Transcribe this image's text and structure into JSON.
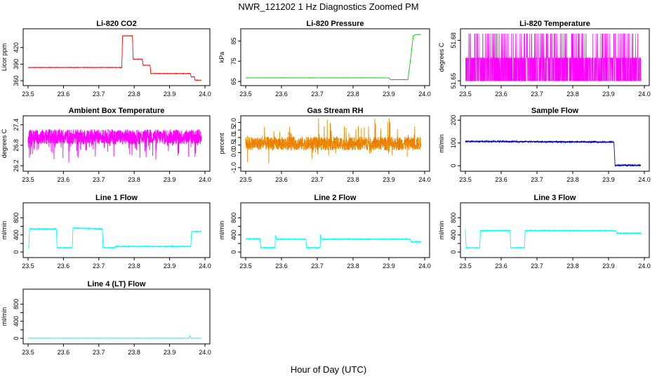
{
  "title": "NWR_121202  1 Hz Diagnostics Zoomed PM",
  "xlabel": "Hour of Day (UTC)",
  "chart_data": [
    {
      "id": "co2",
      "type": "line",
      "title": "Li-820 CO2",
      "ylabel": "Licor ppm",
      "color": "#ff0000",
      "noise": 0.25,
      "xlim": [
        23.5,
        24.0
      ],
      "ylim": [
        355,
        450
      ],
      "xticks": [
        23.5,
        23.6,
        23.7,
        23.8,
        23.9,
        24.0
      ],
      "xtick_labels": [
        "23.5",
        "23.6",
        "23.7",
        "23.8",
        "23.9",
        "24.0"
      ],
      "yticks": [
        360,
        390,
        420
      ],
      "ytick_labels": [
        "360",
        "390",
        "420"
      ],
      "x": [
        23.5,
        23.765,
        23.767,
        23.795,
        23.797,
        23.823,
        23.825,
        23.845,
        23.847,
        23.959,
        23.961,
        23.97,
        23.972,
        23.99
      ],
      "y": [
        384,
        384,
        441,
        441,
        399,
        399,
        388,
        388,
        373,
        373,
        367,
        367,
        361,
        361
      ]
    },
    {
      "id": "pressure",
      "type": "line",
      "title": "Li-820 Pressure",
      "ylabel": "kPa",
      "color": "#00cc00",
      "noise": 0.03,
      "xlim": [
        23.5,
        24.0
      ],
      "ylim": [
        64,
        90
      ],
      "xticks": [
        23.5,
        23.6,
        23.7,
        23.8,
        23.9,
        24.0
      ],
      "xtick_labels": [
        "23.5",
        "23.6",
        "23.7",
        "23.8",
        "23.9",
        "24.0"
      ],
      "yticks": [
        65,
        75,
        85
      ],
      "ytick_labels": [
        "65",
        "75",
        "85"
      ],
      "x": [
        23.5,
        23.9,
        23.905,
        23.953,
        23.962,
        23.968,
        23.975,
        23.99
      ],
      "y": [
        66.8,
        66.8,
        65.9,
        65.9,
        78,
        87.5,
        88.2,
        88.2
      ]
    },
    {
      "id": "temp820",
      "type": "line",
      "title": "Li-820 Temperature",
      "ylabel": "degrees C",
      "color": "#ff00ff",
      "pattern": "discrete",
      "xlim": [
        23.5,
        24.0
      ],
      "ylim": [
        51.648,
        51.687
      ],
      "xticks": [
        23.5,
        23.6,
        23.7,
        23.8,
        23.9,
        24.0
      ],
      "xtick_labels": [
        "23.5",
        "23.6",
        "23.7",
        "23.8",
        "23.9",
        "24.0"
      ],
      "yticks": [
        51.65,
        51.68
      ],
      "ytick_labels": [
        "51.65",
        "51.68"
      ],
      "levels": [
        51.65,
        51.667,
        51.685
      ],
      "x": [
        23.5,
        23.99
      ],
      "y": [
        51.65,
        51.685
      ]
    },
    {
      "id": "ambtemp",
      "type": "line",
      "title": "Ambient Box Temperature",
      "ylabel": "degrees C",
      "color": "#ff00ff",
      "noise": 0.22,
      "xlim": [
        23.5,
        24.0
      ],
      "ylim": [
        26.1,
        27.6
      ],
      "xticks": [
        23.5,
        23.6,
        23.7,
        23.8,
        23.9,
        24.0
      ],
      "xtick_labels": [
        "23.5",
        "23.6",
        "23.7",
        "23.8",
        "23.9",
        "24.0"
      ],
      "yticks": [
        26.2,
        26.8,
        27.4
      ],
      "ytick_labels": [
        "26.2",
        "26.8",
        "27.4"
      ],
      "x": [
        23.5,
        23.99
      ],
      "y": [
        27.05,
        27.05
      ]
    },
    {
      "id": "rh",
      "type": "line",
      "title": "Gas Stream RH",
      "ylabel": "percent",
      "color": "#ff9900",
      "noise": 0.45,
      "pointed": true,
      "xlim": [
        23.5,
        24.0
      ],
      "ylim": [
        -1.1,
        2.3
      ],
      "xticks": [
        23.5,
        23.6,
        23.7,
        23.8,
        23.9,
        24.0
      ],
      "xtick_labels": [
        "23.5",
        "23.6",
        "23.7",
        "23.8",
        "23.9",
        "24.0"
      ],
      "yticks": [
        -1.0,
        0.0,
        0.5,
        1.0,
        1.5,
        2.0
      ],
      "ytick_labels": [
        "-1.0",
        "0.0",
        "0.5",
        "1.0",
        "1.5",
        "2.0"
      ],
      "x": [
        23.5,
        23.99
      ],
      "y": [
        0.6,
        0.6
      ]
    },
    {
      "id": "sampleflow",
      "type": "line",
      "title": "Sample Flow",
      "ylabel": "ml/min",
      "color": "#0000cc",
      "noise": 3,
      "xlim": [
        23.5,
        24.0
      ],
      "ylim": [
        -15,
        210
      ],
      "xticks": [
        23.5,
        23.6,
        23.7,
        23.8,
        23.9,
        24.0
      ],
      "xtick_labels": [
        "23.5",
        "23.6",
        "23.7",
        "23.8",
        "23.9",
        "24.0"
      ],
      "yticks": [
        0,
        100,
        200
      ],
      "ytick_labels": [
        "0",
        "100",
        "200"
      ],
      "x": [
        23.5,
        23.915,
        23.918,
        23.99
      ],
      "y": [
        107,
        104,
        2,
        2
      ]
    },
    {
      "id": "line1",
      "type": "line",
      "title": "Line 1 Flow",
      "ylabel": "ml/min",
      "color": "#00ffff",
      "noise": 8,
      "xlim": [
        23.5,
        24.0
      ],
      "ylim": [
        -80,
        1100
      ],
      "xticks": [
        23.5,
        23.6,
        23.7,
        23.8,
        23.9,
        24.0
      ],
      "xtick_labels": [
        "23.5",
        "23.6",
        "23.7",
        "23.8",
        "23.9",
        "24.0"
      ],
      "yticks": [
        0,
        200,
        400,
        600,
        800
      ],
      "ytick_labels": [
        "0",
        "400",
        "800"
      ],
      "x": [
        23.5,
        23.502,
        23.504,
        23.58,
        23.582,
        23.625,
        23.627,
        23.71,
        23.712,
        23.745,
        23.747,
        23.96,
        23.962,
        23.99
      ],
      "y": [
        120,
        120,
        540,
        540,
        100,
        100,
        560,
        540,
        100,
        100,
        130,
        130,
        480,
        480
      ]
    },
    {
      "id": "line2",
      "type": "line",
      "title": "Line 2 Flow",
      "ylabel": "ml/min",
      "color": "#00ffff",
      "noise": 8,
      "xlim": [
        23.5,
        24.0
      ],
      "ylim": [
        -80,
        1100
      ],
      "xticks": [
        23.5,
        23.6,
        23.7,
        23.8,
        23.9,
        24.0
      ],
      "xtick_labels": [
        "23.5",
        "23.6",
        "23.7",
        "23.8",
        "23.9",
        "24.0"
      ],
      "yticks": [
        0,
        200,
        400,
        600,
        800
      ],
      "ytick_labels": [
        "0",
        "400",
        "800"
      ],
      "x": [
        23.5,
        23.54,
        23.542,
        23.582,
        23.583,
        23.586,
        23.588,
        23.668,
        23.67,
        23.708,
        23.709,
        23.712,
        23.714,
        23.96,
        23.962,
        23.99
      ],
      "y": [
        310,
        310,
        100,
        100,
        400,
        300,
        300,
        300,
        100,
        100,
        420,
        300,
        300,
        300,
        240,
        240
      ]
    },
    {
      "id": "line3",
      "type": "line",
      "title": "Line 3 Flow",
      "ylabel": "ml/min",
      "color": "#00ffff",
      "noise": 8,
      "xlim": [
        23.5,
        24.0
      ],
      "ylim": [
        -80,
        1100
      ],
      "xticks": [
        23.5,
        23.6,
        23.7,
        23.8,
        23.9,
        24.0
      ],
      "xtick_labels": [
        "23.5",
        "23.6",
        "23.7",
        "23.8",
        "23.9",
        "24.0"
      ],
      "yticks": [
        0,
        200,
        400,
        600,
        800
      ],
      "ytick_labels": [
        "0",
        "400",
        "800"
      ],
      "x": [
        23.5,
        23.502,
        23.504,
        23.54,
        23.542,
        23.625,
        23.627,
        23.665,
        23.667,
        23.92,
        23.922,
        23.99
      ],
      "y": [
        520,
        100,
        100,
        100,
        500,
        500,
        100,
        100,
        500,
        500,
        440,
        440
      ]
    },
    {
      "id": "line4",
      "type": "line",
      "title": "Line 4 (LT) Flow",
      "ylabel": "ml/min",
      "color": "#00ffff",
      "noise": 2,
      "xlim": [
        23.5,
        24.0
      ],
      "ylim": [
        -80,
        1100
      ],
      "xticks": [
        23.5,
        23.6,
        23.7,
        23.8,
        23.9,
        24.0
      ],
      "xtick_labels": [
        "23.5",
        "23.6",
        "23.7",
        "23.8",
        "23.9",
        "24.0"
      ],
      "yticks": [
        0,
        200,
        400,
        600,
        800
      ],
      "ytick_labels": [
        "0",
        "400",
        "800"
      ],
      "x": [
        23.5,
        23.955,
        23.958,
        23.961,
        23.99
      ],
      "y": [
        5,
        5,
        60,
        5,
        5
      ]
    }
  ]
}
